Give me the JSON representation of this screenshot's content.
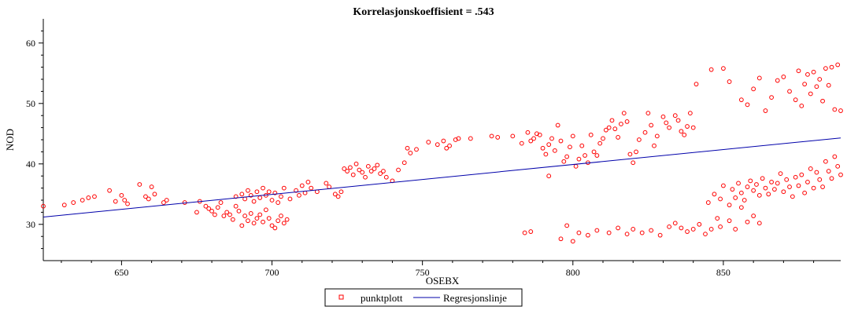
{
  "chart_data": {
    "type": "scatter",
    "title": "Korrelasjonskoeffisient =  .543",
    "xlabel": "OSEBX",
    "ylabel": "NOD",
    "xlim": [
      624,
      889
    ],
    "ylim": [
      24,
      64
    ],
    "xticks": [
      650,
      700,
      750,
      800,
      850
    ],
    "yticks": [
      30,
      40,
      50,
      60
    ],
    "grid": false,
    "legend_position": "bottom-center",
    "colors": {
      "points": "#ff0000",
      "regression": "#0000aa"
    },
    "series": [
      {
        "name": "punktplott",
        "kind": "scatter",
        "points": [
          [
            624,
            33.0
          ],
          [
            631,
            33.2
          ],
          [
            634,
            33.6
          ],
          [
            637,
            34.0
          ],
          [
            639,
            34.4
          ],
          [
            641,
            34.6
          ],
          [
            646,
            35.6
          ],
          [
            648,
            33.8
          ],
          [
            650,
            34.8
          ],
          [
            651,
            34.0
          ],
          [
            652,
            33.4
          ],
          [
            656,
            36.6
          ],
          [
            658,
            34.6
          ],
          [
            659,
            34.2
          ],
          [
            660,
            36.2
          ],
          [
            661,
            35.0
          ],
          [
            664,
            33.6
          ],
          [
            665,
            34.0
          ],
          [
            671,
            33.6
          ],
          [
            675,
            32.0
          ],
          [
            676,
            33.8
          ],
          [
            678,
            33.0
          ],
          [
            679,
            32.6
          ],
          [
            680,
            32.2
          ],
          [
            681,
            31.6
          ],
          [
            682,
            32.8
          ],
          [
            683,
            33.6
          ],
          [
            684,
            31.4
          ],
          [
            685,
            32.0
          ],
          [
            686,
            31.6
          ],
          [
            687,
            30.8
          ],
          [
            688,
            33.0
          ],
          [
            689,
            32.2
          ],
          [
            690,
            29.8
          ],
          [
            691,
            31.4
          ],
          [
            692,
            30.6
          ],
          [
            693,
            31.8
          ],
          [
            694,
            30.2
          ],
          [
            695,
            31.0
          ],
          [
            696,
            31.6
          ],
          [
            697,
            30.4
          ],
          [
            698,
            32.4
          ],
          [
            699,
            31.0
          ],
          [
            700,
            29.8
          ],
          [
            701,
            29.4
          ],
          [
            702,
            30.6
          ],
          [
            703,
            31.4
          ],
          [
            704,
            30.2
          ],
          [
            705,
            30.8
          ],
          [
            688,
            34.6
          ],
          [
            690,
            35.0
          ],
          [
            691,
            34.2
          ],
          [
            692,
            35.6
          ],
          [
            693,
            34.8
          ],
          [
            694,
            33.8
          ],
          [
            695,
            35.4
          ],
          [
            696,
            34.4
          ],
          [
            697,
            36.0
          ],
          [
            698,
            34.8
          ],
          [
            699,
            35.4
          ],
          [
            700,
            34.0
          ],
          [
            701,
            35.2
          ],
          [
            702,
            33.6
          ],
          [
            703,
            34.6
          ],
          [
            704,
            36.0
          ],
          [
            706,
            34.2
          ],
          [
            708,
            35.6
          ],
          [
            709,
            34.8
          ],
          [
            710,
            36.4
          ],
          [
            711,
            35.2
          ],
          [
            712,
            37.0
          ],
          [
            713,
            36.0
          ],
          [
            715,
            35.4
          ],
          [
            718,
            36.8
          ],
          [
            719,
            36.2
          ],
          [
            721,
            35.0
          ],
          [
            722,
            34.6
          ],
          [
            723,
            35.4
          ],
          [
            724,
            39.2
          ],
          [
            725,
            38.8
          ],
          [
            726,
            39.4
          ],
          [
            727,
            38.2
          ],
          [
            728,
            40.0
          ],
          [
            729,
            39.0
          ],
          [
            730,
            38.6
          ],
          [
            731,
            37.8
          ],
          [
            732,
            39.6
          ],
          [
            733,
            38.8
          ],
          [
            734,
            39.2
          ],
          [
            735,
            39.8
          ],
          [
            736,
            38.4
          ],
          [
            737,
            38.8
          ],
          [
            738,
            37.8
          ],
          [
            740,
            37.2
          ],
          [
            742,
            39.0
          ],
          [
            744,
            40.2
          ],
          [
            745,
            42.6
          ],
          [
            746,
            41.8
          ],
          [
            748,
            42.4
          ],
          [
            752,
            43.6
          ],
          [
            755,
            43.2
          ],
          [
            757,
            43.8
          ],
          [
            758,
            42.6
          ],
          [
            759,
            43.0
          ],
          [
            761,
            44.0
          ],
          [
            762,
            44.2
          ],
          [
            766,
            44.2
          ],
          [
            773,
            44.6
          ],
          [
            775,
            44.4
          ],
          [
            780,
            44.6
          ],
          [
            783,
            43.4
          ],
          [
            784,
            28.6
          ],
          [
            785,
            45.2
          ],
          [
            786,
            43.8
          ],
          [
            787,
            44.2
          ],
          [
            788,
            45.0
          ],
          [
            789,
            44.8
          ],
          [
            790,
            42.6
          ],
          [
            791,
            41.6
          ],
          [
            792,
            43.2
          ],
          [
            793,
            44.2
          ],
          [
            794,
            42.2
          ],
          [
            795,
            46.4
          ],
          [
            796,
            43.8
          ],
          [
            797,
            40.4
          ],
          [
            798,
            41.2
          ],
          [
            799,
            42.8
          ],
          [
            800,
            44.6
          ],
          [
            801,
            39.6
          ],
          [
            802,
            40.8
          ],
          [
            803,
            43.0
          ],
          [
            804,
            41.4
          ],
          [
            805,
            40.2
          ],
          [
            806,
            44.8
          ],
          [
            807,
            42.0
          ],
          [
            808,
            41.4
          ],
          [
            809,
            43.4
          ],
          [
            810,
            44.2
          ],
          [
            811,
            45.6
          ],
          [
            812,
            46.0
          ],
          [
            813,
            47.2
          ],
          [
            814,
            45.8
          ],
          [
            815,
            44.4
          ],
          [
            816,
            46.6
          ],
          [
            817,
            48.4
          ],
          [
            818,
            47.0
          ],
          [
            819,
            41.6
          ],
          [
            820,
            40.2
          ],
          [
            821,
            42.0
          ],
          [
            822,
            44.0
          ],
          [
            824,
            45.2
          ],
          [
            825,
            48.4
          ],
          [
            826,
            46.4
          ],
          [
            827,
            43.0
          ],
          [
            828,
            44.6
          ],
          [
            830,
            47.8
          ],
          [
            831,
            46.8
          ],
          [
            832,
            46.0
          ],
          [
            834,
            48.0
          ],
          [
            835,
            47.2
          ],
          [
            836,
            45.4
          ],
          [
            837,
            44.8
          ],
          [
            838,
            46.2
          ],
          [
            839,
            48.4
          ],
          [
            840,
            46.0
          ],
          [
            841,
            53.2
          ],
          [
            786,
            28.8
          ],
          [
            792,
            38.0
          ],
          [
            796,
            27.6
          ],
          [
            798,
            29.8
          ],
          [
            800,
            27.2
          ],
          [
            802,
            28.6
          ],
          [
            805,
            28.2
          ],
          [
            808,
            29.0
          ],
          [
            812,
            28.6
          ],
          [
            815,
            29.4
          ],
          [
            818,
            28.4
          ],
          [
            820,
            29.2
          ],
          [
            823,
            28.6
          ],
          [
            826,
            29.0
          ],
          [
            829,
            28.2
          ],
          [
            832,
            29.6
          ],
          [
            834,
            30.2
          ],
          [
            836,
            29.4
          ],
          [
            838,
            28.8
          ],
          [
            840,
            29.2
          ],
          [
            842,
            30.0
          ],
          [
            844,
            28.4
          ],
          [
            846,
            29.2
          ],
          [
            848,
            31.0
          ],
          [
            849,
            29.6
          ],
          [
            852,
            30.6
          ],
          [
            854,
            29.2
          ],
          [
            856,
            32.8
          ],
          [
            858,
            30.4
          ],
          [
            860,
            31.4
          ],
          [
            862,
            30.2
          ],
          [
            846,
            55.6
          ],
          [
            850,
            55.8
          ],
          [
            852,
            53.6
          ],
          [
            856,
            50.6
          ],
          [
            858,
            49.8
          ],
          [
            860,
            52.4
          ],
          [
            862,
            54.2
          ],
          [
            864,
            48.8
          ],
          [
            866,
            51.0
          ],
          [
            868,
            53.8
          ],
          [
            870,
            54.4
          ],
          [
            872,
            52.0
          ],
          [
            874,
            50.6
          ],
          [
            875,
            55.4
          ],
          [
            876,
            49.6
          ],
          [
            877,
            53.2
          ],
          [
            878,
            54.8
          ],
          [
            879,
            51.6
          ],
          [
            880,
            55.2
          ],
          [
            881,
            52.8
          ],
          [
            882,
            54.0
          ],
          [
            883,
            50.4
          ],
          [
            884,
            55.8
          ],
          [
            885,
            53.0
          ],
          [
            886,
            56.0
          ],
          [
            887,
            49.0
          ],
          [
            888,
            56.4
          ],
          [
            889,
            48.8
          ],
          [
            845,
            33.6
          ],
          [
            847,
            35.0
          ],
          [
            849,
            34.2
          ],
          [
            850,
            36.4
          ],
          [
            852,
            33.2
          ],
          [
            853,
            35.8
          ],
          [
            854,
            34.4
          ],
          [
            855,
            36.8
          ],
          [
            856,
            35.2
          ],
          [
            857,
            34.0
          ],
          [
            858,
            36.2
          ],
          [
            859,
            37.2
          ],
          [
            860,
            35.6
          ],
          [
            861,
            36.6
          ],
          [
            862,
            34.8
          ],
          [
            863,
            37.6
          ],
          [
            864,
            36.0
          ],
          [
            865,
            35.0
          ],
          [
            866,
            37.0
          ],
          [
            867,
            35.8
          ],
          [
            868,
            36.8
          ],
          [
            869,
            38.4
          ],
          [
            870,
            35.4
          ],
          [
            871,
            37.4
          ],
          [
            872,
            36.2
          ],
          [
            873,
            34.6
          ],
          [
            874,
            37.8
          ],
          [
            875,
            36.4
          ],
          [
            876,
            38.2
          ],
          [
            877,
            35.2
          ],
          [
            878,
            37.0
          ],
          [
            879,
            39.2
          ],
          [
            880,
            36.0
          ],
          [
            881,
            38.6
          ],
          [
            882,
            37.4
          ],
          [
            883,
            36.2
          ],
          [
            884,
            40.4
          ],
          [
            885,
            38.8
          ],
          [
            886,
            37.6
          ],
          [
            887,
            41.2
          ],
          [
            888,
            39.6
          ],
          [
            889,
            38.2
          ]
        ]
      },
      {
        "name": "Regresjonslinje",
        "kind": "line",
        "points": [
          [
            624,
            31.2
          ],
          [
            889,
            44.3
          ]
        ]
      }
    ]
  }
}
